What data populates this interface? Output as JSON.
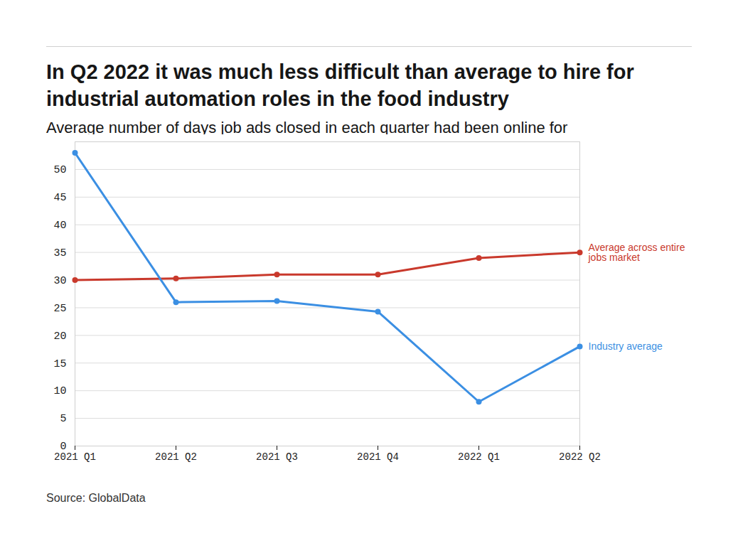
{
  "chart_data": {
    "type": "line",
    "title": "In Q2 2022 it was much less difficult than average to hire for industrial automation roles in the food industry",
    "subtitle": "Average number of days job ads closed in each quarter had been online for",
    "source": "Source: GlobalData",
    "categories": [
      "2021 Q1",
      "2021 Q2",
      "2021 Q3",
      "2021 Q4",
      "2022 Q1",
      "2022 Q2"
    ],
    "series": [
      {
        "name": "Average across entire jobs market",
        "color": "#c9392c",
        "marker": "circle",
        "values": [
          30,
          30.3,
          31,
          31,
          34,
          35
        ]
      },
      {
        "name": "Industry average",
        "color": "#3b8fe3",
        "marker": "circle",
        "values": [
          53,
          26,
          26.2,
          24.3,
          8,
          18
        ]
      }
    ],
    "ylim": [
      0,
      55
    ],
    "yticks": [
      0,
      5,
      10,
      15,
      20,
      25,
      30,
      35,
      40,
      45,
      50
    ],
    "grid": true
  }
}
